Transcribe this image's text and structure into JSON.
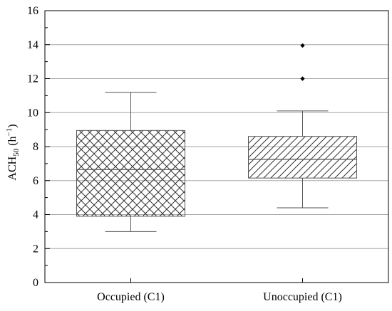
{
  "chart_data": {
    "type": "box",
    "ylabel": {
      "base": "ACH",
      "subscript": "50",
      "unit_open": " (h",
      "superscript": "−1",
      "unit_close": ")"
    },
    "ylim": [
      0,
      16
    ],
    "yticks": [
      "0",
      "2",
      "4",
      "6",
      "8",
      "10",
      "12",
      "14",
      "16"
    ],
    "grid": true,
    "categories": [
      "Occupied (C1)",
      "Unoccupied (C1)"
    ],
    "boxes": [
      {
        "label": "Occupied (C1)",
        "whisker_low": 3.0,
        "q1": 3.9,
        "median": 6.65,
        "q3": 8.95,
        "whisker_high": 11.2,
        "outliers": [],
        "pattern": "crosshatch"
      },
      {
        "label": "Unoccupied (C1)",
        "whisker_low": 4.4,
        "q1": 6.15,
        "median": 7.25,
        "q3": 8.6,
        "whisker_high": 10.1,
        "outliers": [
          12.0,
          13.95
        ],
        "pattern": "diagonal"
      }
    ],
    "colors": {
      "line": "#555555",
      "grid": "#a6a6a6",
      "frame": "#000000",
      "outlier": "#000000"
    }
  }
}
